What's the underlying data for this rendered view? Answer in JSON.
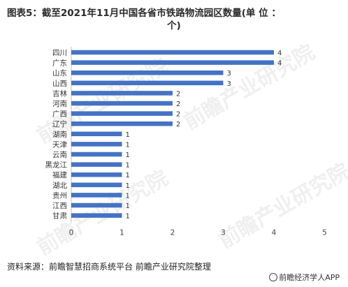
{
  "title": {
    "line1": "图表5：截至2021年11月中国各省市铁路物流园区数量(单 位 ：",
    "line2": "个)"
  },
  "chart_data": {
    "type": "bar",
    "orientation": "horizontal",
    "categories": [
      "四川",
      "广东",
      "山东",
      "山西",
      "吉林",
      "河南",
      "广西",
      "辽宁",
      "湖南",
      "天津",
      "云南",
      "黑龙江",
      "福建",
      "湖北",
      "贵州",
      "江西",
      "甘肃"
    ],
    "values": [
      4,
      4,
      3,
      3,
      2,
      2,
      2,
      2,
      1,
      1,
      1,
      1,
      1,
      1,
      1,
      1,
      1
    ],
    "xlim": [
      0,
      5
    ],
    "xticks": [
      "0",
      "1",
      "2",
      "3",
      "4",
      "5"
    ],
    "bar_color": "#4472c4",
    "grid": false
  },
  "source": "资料来源：前瞻智慧招商系统平台 前瞻产业研究院整理",
  "brand": "前瞻经济学人APP",
  "watermark": "前瞻产业研究院"
}
